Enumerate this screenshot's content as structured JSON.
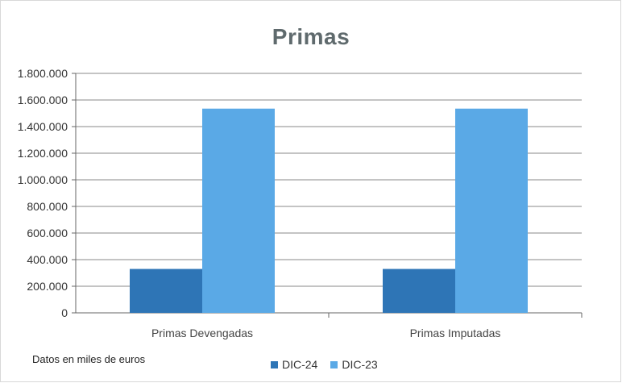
{
  "chart_data": {
    "type": "bar",
    "title": "Primas",
    "categories": [
      "Primas Devengadas",
      "Primas Imputadas"
    ],
    "series": [
      {
        "name": "DIC-24",
        "values": [
          330000,
          330000
        ],
        "color": "#2e75b6"
      },
      {
        "name": "DIC-23",
        "values": [
          1535000,
          1535000
        ],
        "color": "#5aa9e6"
      }
    ],
    "ylim": [
      0,
      1800000
    ],
    "yticks": [
      "0",
      "200.000",
      "400.000",
      "600.000",
      "800.000",
      "1.000.000",
      "1.200.000",
      "1.400.000",
      "1.600.000",
      "1.800.000"
    ],
    "grid": true,
    "legend_position": "bottom"
  },
  "note": "Datos en miles de euros"
}
